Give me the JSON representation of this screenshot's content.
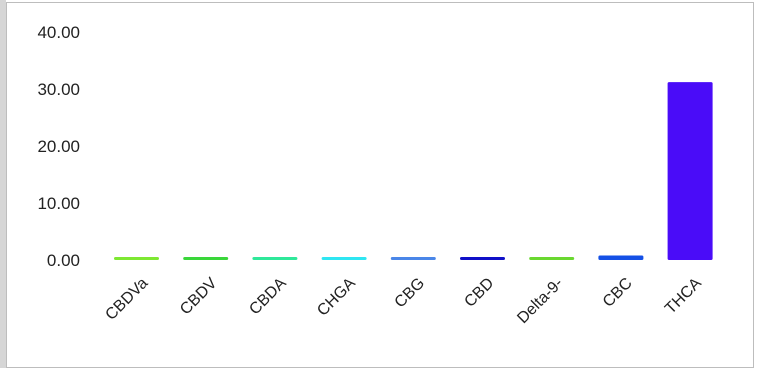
{
  "chart_data": {
    "type": "bar",
    "categories": [
      "CBDVa",
      "CBDV",
      "CBDA",
      "CHGA",
      "CBG",
      "CBD",
      "Delta-9-",
      "CBC",
      "THCA"
    ],
    "values": [
      0.4,
      0.4,
      0.4,
      0.4,
      0.4,
      0.4,
      0.2,
      0.8,
      31.2
    ],
    "colors": [
      "#7ee832",
      "#3ad63a",
      "#2fe89a",
      "#2fe6f2",
      "#4a86e8",
      "#1010c8",
      "#6ad830",
      "#1450e6",
      "#4a0cf8"
    ],
    "yticks": [
      "0.00",
      "10.00",
      "20.00",
      "30.00",
      "40.00"
    ],
    "ylim": [
      0,
      40
    ],
    "title": "",
    "xlabel": "",
    "ylabel": "",
    "grid": false,
    "legend": "none"
  }
}
